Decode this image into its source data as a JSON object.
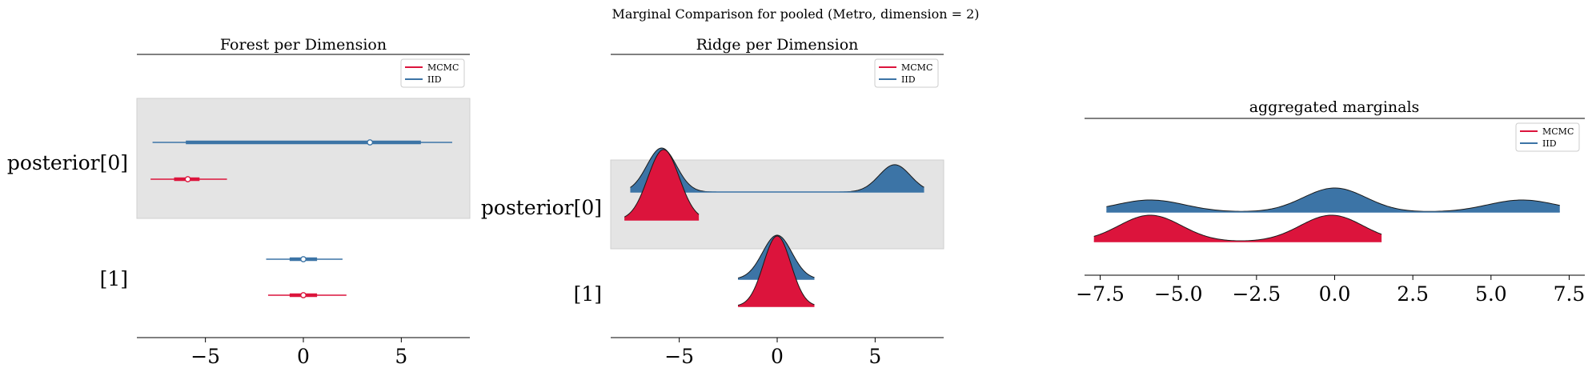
{
  "figure": {
    "suptitle": "Marginal Comparison for pooled (Metro, dimension = 2)"
  },
  "colors": {
    "mcmc": "#dc143c",
    "iid": "#3c74a6",
    "band": "#e4e4e4"
  },
  "chart_data": [
    {
      "type": "forest",
      "title": "Forest per Dimension",
      "legend": [
        "MCMC",
        "IID"
      ],
      "legend_position": "top-right",
      "xlim": [
        -8.5,
        8.5
      ],
      "xticks": [
        -5,
        0,
        5
      ],
      "xtick_labels": [
        "−5",
        "0",
        "5"
      ],
      "rows": [
        {
          "label": "posterior[0]",
          "series": [
            {
              "name": "IID",
              "hdi94": [
                -7.7,
                7.6
              ],
              "iqr": [
                -6.0,
                6.0
              ],
              "median": 3.4
            },
            {
              "name": "MCMC",
              "hdi94": [
                -7.8,
                -3.9
              ],
              "iqr": [
                -6.6,
                -5.3
              ],
              "median": -5.9
            }
          ]
        },
        {
          "label": "[1]",
          "series": [
            {
              "name": "IID",
              "hdi94": [
                -1.9,
                2.0
              ],
              "iqr": [
                -0.7,
                0.7
              ],
              "median": 0.0
            },
            {
              "name": "MCMC",
              "hdi94": [
                -1.8,
                2.2
              ],
              "iqr": [
                -0.7,
                0.7
              ],
              "median": 0.0
            }
          ]
        }
      ]
    },
    {
      "type": "ridge",
      "title": "Ridge per Dimension",
      "legend": [
        "MCMC",
        "IID"
      ],
      "legend_position": "top-right",
      "xlim": [
        -8.5,
        8.5
      ],
      "xticks": [
        -5,
        0,
        5
      ],
      "xtick_labels": [
        "−5",
        "0",
        "5"
      ],
      "rows": [
        {
          "label": "posterior[0]",
          "series": [
            {
              "name": "IID",
              "range": [
                -7.5,
                7.5
              ],
              "modes": [
                {
                  "mu": -5.9,
                  "sd": 0.75,
                  "w": 1.0
                },
                {
                  "mu": 6.0,
                  "sd": 0.8,
                  "w": 0.62
                }
              ]
            },
            {
              "name": "MCMC",
              "range": [
                -7.8,
                -4.0
              ],
              "modes": [
                {
                  "mu": -5.8,
                  "sd": 0.8,
                  "w": 1.0
                }
              ]
            }
          ]
        },
        {
          "label": "[1]",
          "series": [
            {
              "name": "IID",
              "range": [
                -2.0,
                1.9
              ],
              "modes": [
                {
                  "mu": 0.0,
                  "sd": 0.75,
                  "w": 1.0
                }
              ]
            },
            {
              "name": "MCMC",
              "range": [
                -2.0,
                1.9
              ],
              "modes": [
                {
                  "mu": 0.0,
                  "sd": 0.7,
                  "w": 1.0
                }
              ]
            }
          ]
        }
      ]
    },
    {
      "type": "ridge",
      "title": "aggregated marginals",
      "legend": [
        "MCMC",
        "IID"
      ],
      "legend_position": "top-right",
      "xlim": [
        -8.0,
        8.0
      ],
      "xticks": [
        -7.5,
        -5.0,
        -2.5,
        0.0,
        2.5,
        5.0,
        7.5
      ],
      "xtick_labels": [
        "−7.5",
        "−5.0",
        "−2.5",
        "0.0",
        "2.5",
        "5.0",
        "7.5"
      ],
      "series": [
        {
          "name": "IID",
          "range": [
            -7.3,
            7.2
          ],
          "modes": [
            {
              "mu": -5.9,
              "sd": 1.1,
              "w": 0.5
            },
            {
              "mu": 0.0,
              "sd": 1.0,
              "w": 1.0
            },
            {
              "mu": 6.0,
              "sd": 1.1,
              "w": 0.5
            }
          ]
        },
        {
          "name": "MCMC",
          "range": [
            -7.7,
            1.5
          ],
          "modes": [
            {
              "mu": -5.9,
              "sd": 1.0,
              "w": 1.0
            },
            {
              "mu": -0.1,
              "sd": 1.0,
              "w": 1.0
            }
          ]
        }
      ]
    }
  ]
}
